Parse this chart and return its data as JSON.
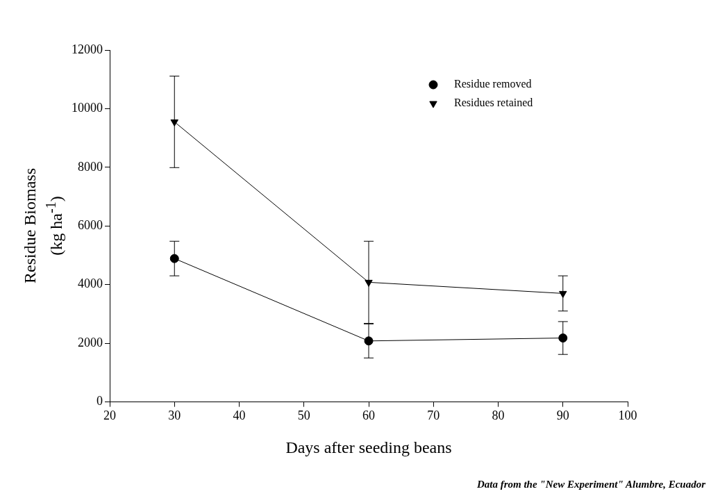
{
  "chart_data": {
    "type": "line",
    "xlabel": "Days after seeding beans",
    "ylabel": "Residue Biomass\n(kg ha$^{-1}$)",
    "annotations": [
      "Data from the \"New Experiment\" Alumbre, Ecuador"
    ],
    "x": [
      30,
      60,
      90
    ],
    "series": [
      {
        "name": "Residue removed",
        "color": "#000000",
        "marker": "circle",
        "values": [
          4890,
          2080,
          2180
        ],
        "errors": [
          590,
          580,
          560
        ]
      },
      {
        "name": "Residues retained",
        "color": "#000000",
        "marker": "triangle-down",
        "values": [
          9550,
          4080,
          3700
        ],
        "errors": [
          1560,
          1400,
          600
        ]
      }
    ],
    "xlim": [
      20,
      100
    ],
    "xticks": [
      20,
      30,
      40,
      50,
      60,
      70,
      80,
      90,
      100
    ],
    "ylim": [
      0,
      12000
    ],
    "yticks": [
      0,
      2000,
      4000,
      6000,
      8000,
      10000,
      12000
    ],
    "grid": false,
    "legend": "top right",
    "line_style": "solid"
  }
}
